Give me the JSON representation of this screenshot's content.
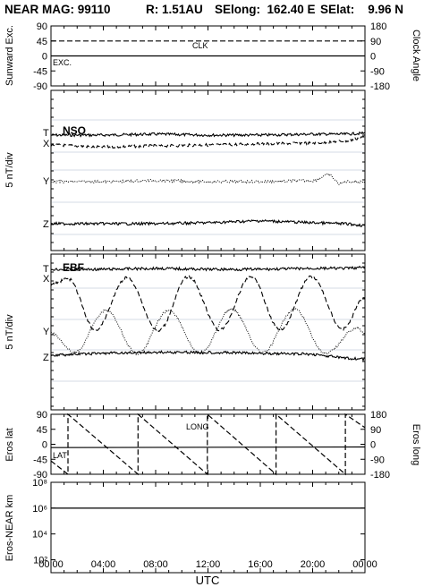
{
  "header": {
    "mission": "NEAR MAG: 99110",
    "range": "R: 1.51AU",
    "selong": "SElong:  162.40 E",
    "selat": "SElat:    9.96 N"
  },
  "chart_data": [
    {
      "type": "line",
      "panel": "sunward-exc-clock-angle",
      "ylabel": "Sunward Exc.",
      "ylabel_right": "Clock Angle",
      "yticks": [
        "90",
        "45",
        "0",
        "-45",
        "-90"
      ],
      "yticks_right": [
        "180",
        "90",
        "0",
        "-90",
        "-180"
      ],
      "ylim": [
        -90,
        90
      ],
      "ylim_right": [
        -180,
        180
      ],
      "series": [
        {
          "name": "CLK",
          "axis": "right",
          "style": "dashed",
          "x": [
            0,
            24
          ],
          "y": [
            90,
            90
          ]
        },
        {
          "name": "EXC.",
          "axis": "left",
          "style": "solid",
          "x": [
            0,
            24
          ],
          "y": [
            0,
            0
          ]
        }
      ]
    },
    {
      "type": "line",
      "panel": "nso",
      "title": "NSO",
      "ylabel": "5 nT/div",
      "series": [
        {
          "name": "T",
          "style": "solid",
          "x": [
            0,
            4,
            8,
            12,
            16,
            20,
            22.5,
            24
          ],
          "y": [
            0,
            0,
            0.1,
            0,
            0,
            0.1,
            0.1,
            0.2
          ]
        },
        {
          "name": "X",
          "style": "dashed",
          "x": [
            0,
            4,
            8,
            12,
            16,
            20,
            22.5,
            24
          ],
          "y": [
            0,
            -0.2,
            -0.1,
            0,
            0.1,
            0.2,
            0.4,
            0.8
          ]
        },
        {
          "name": "Y",
          "style": "dotted",
          "x": [
            0,
            4,
            8,
            12,
            16,
            20,
            21.2,
            22.1,
            22.5,
            24
          ],
          "y": [
            0,
            0,
            0.1,
            0,
            0,
            0.1,
            0.7,
            -0.2,
            0,
            0
          ]
        },
        {
          "name": "Z",
          "style": "solid",
          "x": [
            0,
            4,
            8,
            12,
            16,
            20,
            22.5,
            24
          ],
          "y": [
            0,
            0,
            0,
            0.1,
            0.3,
            0.1,
            0,
            -0.2
          ]
        }
      ]
    },
    {
      "type": "line",
      "panel": "ebf",
      "title": "EBF",
      "ylabel": "5 nT/div",
      "series": [
        {
          "name": "T",
          "style": "solid",
          "x": [
            0,
            4,
            8,
            12,
            16,
            20,
            22.5,
            24
          ],
          "y": [
            0,
            0,
            0.1,
            0,
            0,
            0.1,
            0.1,
            0.2
          ]
        },
        {
          "name": "X",
          "style": "dashed",
          "x": [
            0,
            1.3,
            3.4,
            5.8,
            8.2,
            10.5,
            12.9,
            15.3,
            17.5,
            19.9,
            22.3,
            24
          ],
          "y": [
            0,
            0.6,
            -4.6,
            0.7,
            -4.7,
            0.8,
            -4.6,
            0.8,
            -4.6,
            0.8,
            -4.5,
            -1.3
          ]
        },
        {
          "name": "Y",
          "style": "dotted",
          "x": [
            0,
            1.8,
            4.2,
            6.6,
            9.0,
            11.4,
            13.8,
            16.2,
            18.6,
            21.0,
            23.4,
            24
          ],
          "y": [
            0,
            -2.0,
            2.3,
            -2.1,
            2.3,
            -2.1,
            2.4,
            -2.0,
            2.4,
            -2.1,
            0.5,
            0
          ]
        },
        {
          "name": "Z",
          "style": "solid",
          "x": [
            0,
            4,
            8,
            12,
            16,
            20,
            22.5,
            24
          ],
          "y": [
            0,
            0.2,
            0.3,
            0.3,
            0.2,
            0.1,
            -0.3,
            -0.4
          ]
        }
      ]
    },
    {
      "type": "line",
      "panel": "eros-lat-long",
      "ylabel": "Eros lat",
      "ylabel_right": "Eros long",
      "yticks": [
        "90",
        "45",
        "0",
        "-45",
        "-90"
      ],
      "yticks_right": [
        "180",
        "90",
        "0",
        "-90",
        "-180"
      ],
      "ylim": [
        -90,
        90
      ],
      "ylim_right": [
        -180,
        180
      ],
      "series": [
        {
          "name": "LONG",
          "axis": "right",
          "style": "dashed",
          "x": [
            0,
            1.3,
            1.3,
            6.65,
            6.65,
            11.95,
            11.95,
            17.2,
            17.2,
            22.5,
            22.5,
            24
          ],
          "y": [
            -100,
            -180,
            180,
            -180,
            180,
            -180,
            180,
            -180,
            180,
            -180,
            180,
            100
          ]
        },
        {
          "name": "LAT",
          "axis": "left",
          "style": "solid",
          "x": [
            0,
            24
          ],
          "y": [
            -10,
            -8
          ]
        }
      ]
    },
    {
      "type": "line",
      "panel": "eros-near-km",
      "ylabel": "Eros-NEAR km",
      "yscale": "log",
      "yticks": [
        "10⁸",
        "10⁶",
        "10⁴",
        "10²"
      ],
      "ylim": [
        10,
        100000000
      ],
      "series": [
        {
          "name": "distance",
          "style": "solid",
          "x": [
            0,
            24
          ],
          "y": [
            1000000,
            1000000
          ]
        }
      ]
    }
  ],
  "xaxis": {
    "xlabel": "UTC",
    "ticks": [
      "00:00",
      "04:00",
      "08:00",
      "12:00",
      "16:00",
      "20:00",
      "00:00"
    ],
    "xlim": [
      0,
      24
    ]
  }
}
